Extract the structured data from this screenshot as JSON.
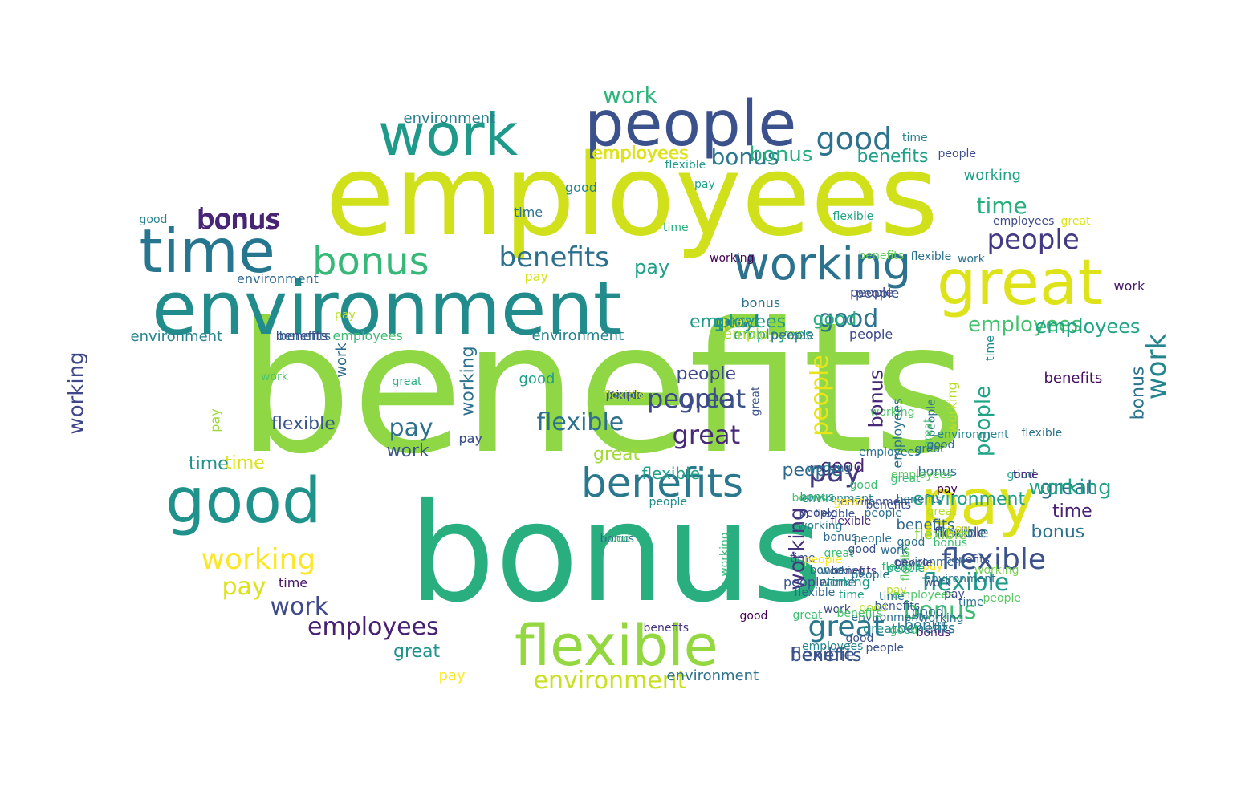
{
  "word_cloud": {
    "palette": [
      "#440154",
      "#443983",
      "#31688e",
      "#21918c",
      "#35b779",
      "#90d743",
      "#fde725",
      "#d0e11c"
    ],
    "words": [
      {
        "text": "benefits",
        "color": "#8fd744"
      },
      {
        "text": "bonus",
        "color": "#29af7f"
      },
      {
        "text": "employees",
        "color": "#d0e11c"
      },
      {
        "text": "environment",
        "color": "#228c8d"
      },
      {
        "text": "people",
        "color": "#3b518b"
      },
      {
        "text": "work",
        "color": "#1f9a8a"
      },
      {
        "text": "time",
        "color": "#25768e"
      },
      {
        "text": "great",
        "color": "#dde318"
      },
      {
        "text": "pay",
        "color": "#dde318"
      },
      {
        "text": "good",
        "color": "#20928c"
      },
      {
        "text": "flexible",
        "color": "#93d741"
      },
      {
        "text": "working",
        "color": "#2c728e"
      },
      {
        "text": "bonus",
        "color": "#37b878"
      },
      {
        "text": "benefits",
        "color": "#2a788e"
      },
      {
        "text": "work",
        "color": "#2fb47c"
      },
      {
        "text": "time",
        "color": "#29af7f"
      },
      {
        "text": "bonus",
        "color": "#482475"
      },
      {
        "text": "environment",
        "color": "#287d8e"
      },
      {
        "text": "people",
        "color": "#443a83"
      },
      {
        "text": "good",
        "color": "#2c728e"
      },
      {
        "text": "bonus",
        "color": "#2a788e"
      },
      {
        "text": "employees",
        "color": "#dde318"
      },
      {
        "text": "benefits",
        "color": "#1fa088"
      },
      {
        "text": "time",
        "color": "#dde318"
      },
      {
        "text": "employees",
        "color": "#48c16e"
      },
      {
        "text": "good",
        "color": "#2c728e"
      },
      {
        "text": "good",
        "color": "#1f9f88"
      },
      {
        "text": "employees",
        "color": "#20a386"
      },
      {
        "text": "benefits",
        "color": "#2d708e"
      },
      {
        "text": "employees",
        "color": "#3dbc74"
      },
      {
        "text": "good",
        "color": "#2a788e"
      },
      {
        "text": "good",
        "color": "#25848e"
      },
      {
        "text": "bonus",
        "color": "#2c728e"
      },
      {
        "text": "people",
        "color": "#3e4989"
      },
      {
        "text": "great",
        "color": "#3b528b"
      },
      {
        "text": "great",
        "color": "#482878"
      },
      {
        "text": "flexible",
        "color": "#2d708e"
      },
      {
        "text": "flexible",
        "color": "#39568c"
      },
      {
        "text": "pay",
        "color": "#2d708e"
      },
      {
        "text": "work",
        "color": "#39568c"
      },
      {
        "text": "employees",
        "color": "#482071"
      },
      {
        "text": "flexible",
        "color": "#3b528b"
      },
      {
        "text": "flexible",
        "color": "#1f9a8a"
      },
      {
        "text": "bonus",
        "color": "#3dbc74"
      },
      {
        "text": "environment",
        "color": "#c8e020"
      },
      {
        "text": "great",
        "color": "#2a788e"
      },
      {
        "text": "work",
        "color": "#3e4a89"
      },
      {
        "text": "benefits",
        "color": "#2a788e"
      },
      {
        "text": "time",
        "color": "#2f6c8e"
      },
      {
        "text": "pay",
        "color": "#dde318"
      },
      {
        "text": "environment",
        "color": "#25848e"
      },
      {
        "text": "bonus",
        "color": "#2c728e"
      },
      {
        "text": "work",
        "color": "#481c6e"
      },
      {
        "text": "flexible",
        "color": "#3b528b"
      },
      {
        "text": "great",
        "color": "#20938c"
      },
      {
        "text": "people",
        "color": "#2c728e"
      },
      {
        "text": "pay",
        "color": "#3e4a89"
      },
      {
        "text": "pay",
        "color": "#453882"
      },
      {
        "text": "people",
        "color": "#3f4788"
      },
      {
        "text": "benefits",
        "color": "#2c728e"
      },
      {
        "text": "bonus",
        "color": "#2c728e"
      },
      {
        "text": "time",
        "color": "#481467"
      },
      {
        "text": "bonus",
        "color": "#2f6b8e"
      },
      {
        "text": "bonus",
        "color": "#482475"
      },
      {
        "text": "employees",
        "color": "#3e4a89"
      },
      {
        "text": "time",
        "color": "#2c718e"
      },
      {
        "text": "people",
        "color": "#20a486"
      },
      {
        "text": "people",
        "color": "#5cc863"
      },
      {
        "text": "working",
        "color": "#3f4788"
      },
      {
        "text": "working",
        "color": "#46337f"
      },
      {
        "text": "working",
        "color": "#fde725"
      },
      {
        "text": "working",
        "color": "#b8de29"
      },
      {
        "text": "work",
        "color": "#25858e"
      },
      {
        "text": "work",
        "color": "#50c46a"
      },
      {
        "text": "working",
        "color": "#2c728e"
      },
      {
        "text": "pay",
        "color": "#9dd93b"
      },
      {
        "text": "great",
        "color": "#29af7f"
      },
      {
        "text": "pay",
        "color": "#b8de29"
      },
      {
        "text": "environment",
        "color": "#25848e"
      },
      {
        "text": "great",
        "color": "#a2da37"
      },
      {
        "text": "time",
        "color": "#21918c"
      },
      {
        "text": "flexible",
        "color": "#1f9a8a"
      },
      {
        "text": "pay",
        "color": "#3b528b"
      },
      {
        "text": "employees",
        "color": "#a8db34"
      },
      {
        "text": "pay",
        "color": "#1fa188"
      },
      {
        "text": "people",
        "color": "#3e4a89"
      },
      {
        "text": "bonus",
        "color": "#28ae80"
      },
      {
        "text": "people",
        "color": "#3d4d8a"
      },
      {
        "text": "good",
        "color": "#26828e"
      },
      {
        "text": "time",
        "color": "#26828e"
      },
      {
        "text": "work",
        "color": "#31688e"
      },
      {
        "text": "great",
        "color": "#21918c"
      },
      {
        "text": "people",
        "color": "#e7e419"
      },
      {
        "text": "benefits",
        "color": "#65cb5e"
      },
      {
        "text": "great",
        "color": "#2d708e"
      },
      {
        "text": "environment",
        "color": "#26828e"
      },
      {
        "text": "good",
        "color": "#27808e"
      },
      {
        "text": "people",
        "color": "#228d8d"
      },
      {
        "text": "employees",
        "color": "#dde318"
      },
      {
        "text": "benefits",
        "color": "#3e4a89"
      },
      {
        "text": "flexible",
        "color": "#21918c"
      },
      {
        "text": "good",
        "color": "#1f9f88"
      },
      {
        "text": "working",
        "color": "#1f9f88"
      },
      {
        "text": "working",
        "color": "#440154"
      },
      {
        "text": "flexible",
        "color": "#20a486"
      },
      {
        "text": "environment",
        "color": "#31688e"
      },
      {
        "text": "employees",
        "color": "#20a486"
      },
      {
        "text": "people",
        "color": "#2c728e"
      },
      {
        "text": "flexible",
        "color": "#2c728e"
      },
      {
        "text": "pay",
        "color": "#d5e21a"
      },
      {
        "text": "bonus",
        "color": "#2c728e"
      },
      {
        "text": "time",
        "color": "#482173"
      },
      {
        "text": "good",
        "color": "#35b779"
      },
      {
        "text": "time",
        "color": "#29af7f"
      },
      {
        "text": "working",
        "color": "#52c569"
      },
      {
        "text": "work",
        "color": "#2c728e"
      },
      {
        "text": "employees",
        "color": "#2c728e"
      },
      {
        "text": "environment",
        "color": "#1fa188"
      },
      {
        "text": "benefits",
        "color": "#470e61"
      },
      {
        "text": "working",
        "color": "#20a386"
      },
      {
        "text": "time",
        "color": "#482878"
      },
      {
        "text": "bonus",
        "color": "#1fa088"
      },
      {
        "text": "working",
        "color": "#1f9a8a"
      },
      {
        "text": "people",
        "color": "#3e4a89"
      },
      {
        "text": "great",
        "color": "#2d708e"
      },
      {
        "text": "good",
        "color": "#482475"
      },
      {
        "text": "great",
        "color": "#3b528b"
      },
      {
        "text": "great",
        "color": "#dde318"
      },
      {
        "text": "flexible",
        "color": "#2c728e"
      },
      {
        "text": "flexible",
        "color": "#3f4788"
      },
      {
        "text": "bonus",
        "color": "#482878"
      },
      {
        "text": "benefits",
        "color": "#46337f"
      },
      {
        "text": "benefits",
        "color": "#3b528b"
      },
      {
        "text": "people",
        "color": "#2d708e"
      },
      {
        "text": "good",
        "color": "#27ad81"
      },
      {
        "text": "good",
        "color": "#31688e"
      },
      {
        "text": "employees",
        "color": "#5ec962"
      },
      {
        "text": "people",
        "color": "#39568c"
      },
      {
        "text": "time",
        "color": "#228c8d"
      },
      {
        "text": "flexible",
        "color": "#20a386"
      },
      {
        "text": "pay",
        "color": "#fde725"
      },
      {
        "text": "good",
        "color": "#440154"
      },
      {
        "text": "working",
        "color": "#37b878"
      },
      {
        "text": "bonus",
        "color": "#2a788e"
      },
      {
        "text": "bonus",
        "color": "#4ac16d"
      },
      {
        "text": "flexible",
        "color": "#35b779"
      },
      {
        "text": "benefits",
        "color": "#3b528b"
      },
      {
        "text": "environment",
        "color": "#3e4a89"
      },
      {
        "text": "working",
        "color": "#2c728e"
      },
      {
        "text": "flexible",
        "color": "#5ec962"
      },
      {
        "text": "flexible",
        "color": "#86d549"
      },
      {
        "text": "employees",
        "color": "#2c728e"
      },
      {
        "text": "great",
        "color": "#48c16e"
      },
      {
        "text": "pay",
        "color": "#1fa088"
      },
      {
        "text": "employees",
        "color": "#1f9a8a"
      },
      {
        "text": "pay",
        "color": "#fde725"
      },
      {
        "text": "pay",
        "color": "#dde318"
      },
      {
        "text": "good",
        "color": "#2c728e"
      },
      {
        "text": "working",
        "color": "#7ad151"
      },
      {
        "text": "people",
        "color": "#31688e"
      },
      {
        "text": "work",
        "color": "#2f6c8e"
      },
      {
        "text": "environment",
        "color": "#25848e"
      },
      {
        "text": "benefits",
        "color": "#31688e"
      },
      {
        "text": "great",
        "color": "#228c8d"
      },
      {
        "text": "benefits",
        "color": "#46337f"
      },
      {
        "text": "bonus",
        "color": "#2d708e"
      },
      {
        "text": "environment",
        "color": "#31688e"
      },
      {
        "text": "people",
        "color": "#3b528b"
      },
      {
        "text": "pay",
        "color": "#b8de29"
      },
      {
        "text": "great",
        "color": "#b8de29"
      },
      {
        "text": "time",
        "color": "#2c728e"
      },
      {
        "text": "benefits",
        "color": "#3b528b"
      },
      {
        "text": "people",
        "color": "#3e4a89"
      },
      {
        "text": "working",
        "color": "#2a788e"
      },
      {
        "text": "working",
        "color": "#31688e"
      },
      {
        "text": "bonus",
        "color": "#31688e"
      },
      {
        "text": "bonus",
        "color": "#3dbc74"
      },
      {
        "text": "flexible",
        "color": "#31688e"
      },
      {
        "text": "people",
        "color": "#22a884"
      },
      {
        "text": "environment",
        "color": "#2d708e"
      },
      {
        "text": "time",
        "color": "#3b528b"
      },
      {
        "text": "work",
        "color": "#3e4a89"
      },
      {
        "text": "time",
        "color": "#2c728e"
      },
      {
        "text": "pay",
        "color": "#440154"
      },
      {
        "text": "good",
        "color": "#3b528b"
      },
      {
        "text": "great",
        "color": "#3dbc74"
      },
      {
        "text": "people",
        "color": "#2c728e"
      },
      {
        "text": "benefits",
        "color": "#39568c"
      },
      {
        "text": "flexible",
        "color": "#482878"
      },
      {
        "text": "good",
        "color": "#2d708e"
      },
      {
        "text": "people",
        "color": "#2c728e"
      },
      {
        "text": "employees",
        "color": "#52c569"
      },
      {
        "text": "working",
        "color": "#2a788e"
      },
      {
        "text": "work",
        "color": "#3b528b"
      },
      {
        "text": "good",
        "color": "#3dbc74"
      },
      {
        "text": "great",
        "color": "#3dbc74"
      },
      {
        "text": "great",
        "color": "#3dbc74"
      },
      {
        "text": "good",
        "color": "#b8de29"
      },
      {
        "text": "time",
        "color": "#20a386"
      },
      {
        "text": "employees",
        "color": "#25848e"
      },
      {
        "text": "pay",
        "color": "#3e4a89"
      },
      {
        "text": "benefits",
        "color": "#2d708e"
      },
      {
        "text": "people",
        "color": "#3e4a89"
      },
      {
        "text": "bonus",
        "color": "#482475"
      },
      {
        "text": "good",
        "color": "#3b528b"
      },
      {
        "text": "people",
        "color": "#3b528b"
      },
      {
        "text": "flexible",
        "color": "#39568c"
      },
      {
        "text": "environment",
        "color": "#2c728e"
      },
      {
        "text": "great",
        "color": "#fde725"
      },
      {
        "text": "good",
        "color": "#37b878"
      },
      {
        "text": "benefits",
        "color": "#4ac16d"
      },
      {
        "text": "people",
        "color": "#fde725"
      },
      {
        "text": "environment",
        "color": "#2c728e"
      },
      {
        "text": "pay",
        "color": "#fde725"
      },
      {
        "text": "time",
        "color": "#3e4a89"
      },
      {
        "text": "bonus",
        "color": "#2d708e"
      },
      {
        "text": "work",
        "color": "#2c728e"
      },
      {
        "text": "people",
        "color": "#3b528b"
      },
      {
        "text": "flexible",
        "color": "#d8e219"
      },
      {
        "text": "flexible",
        "color": "#b8de29"
      }
    ]
  }
}
